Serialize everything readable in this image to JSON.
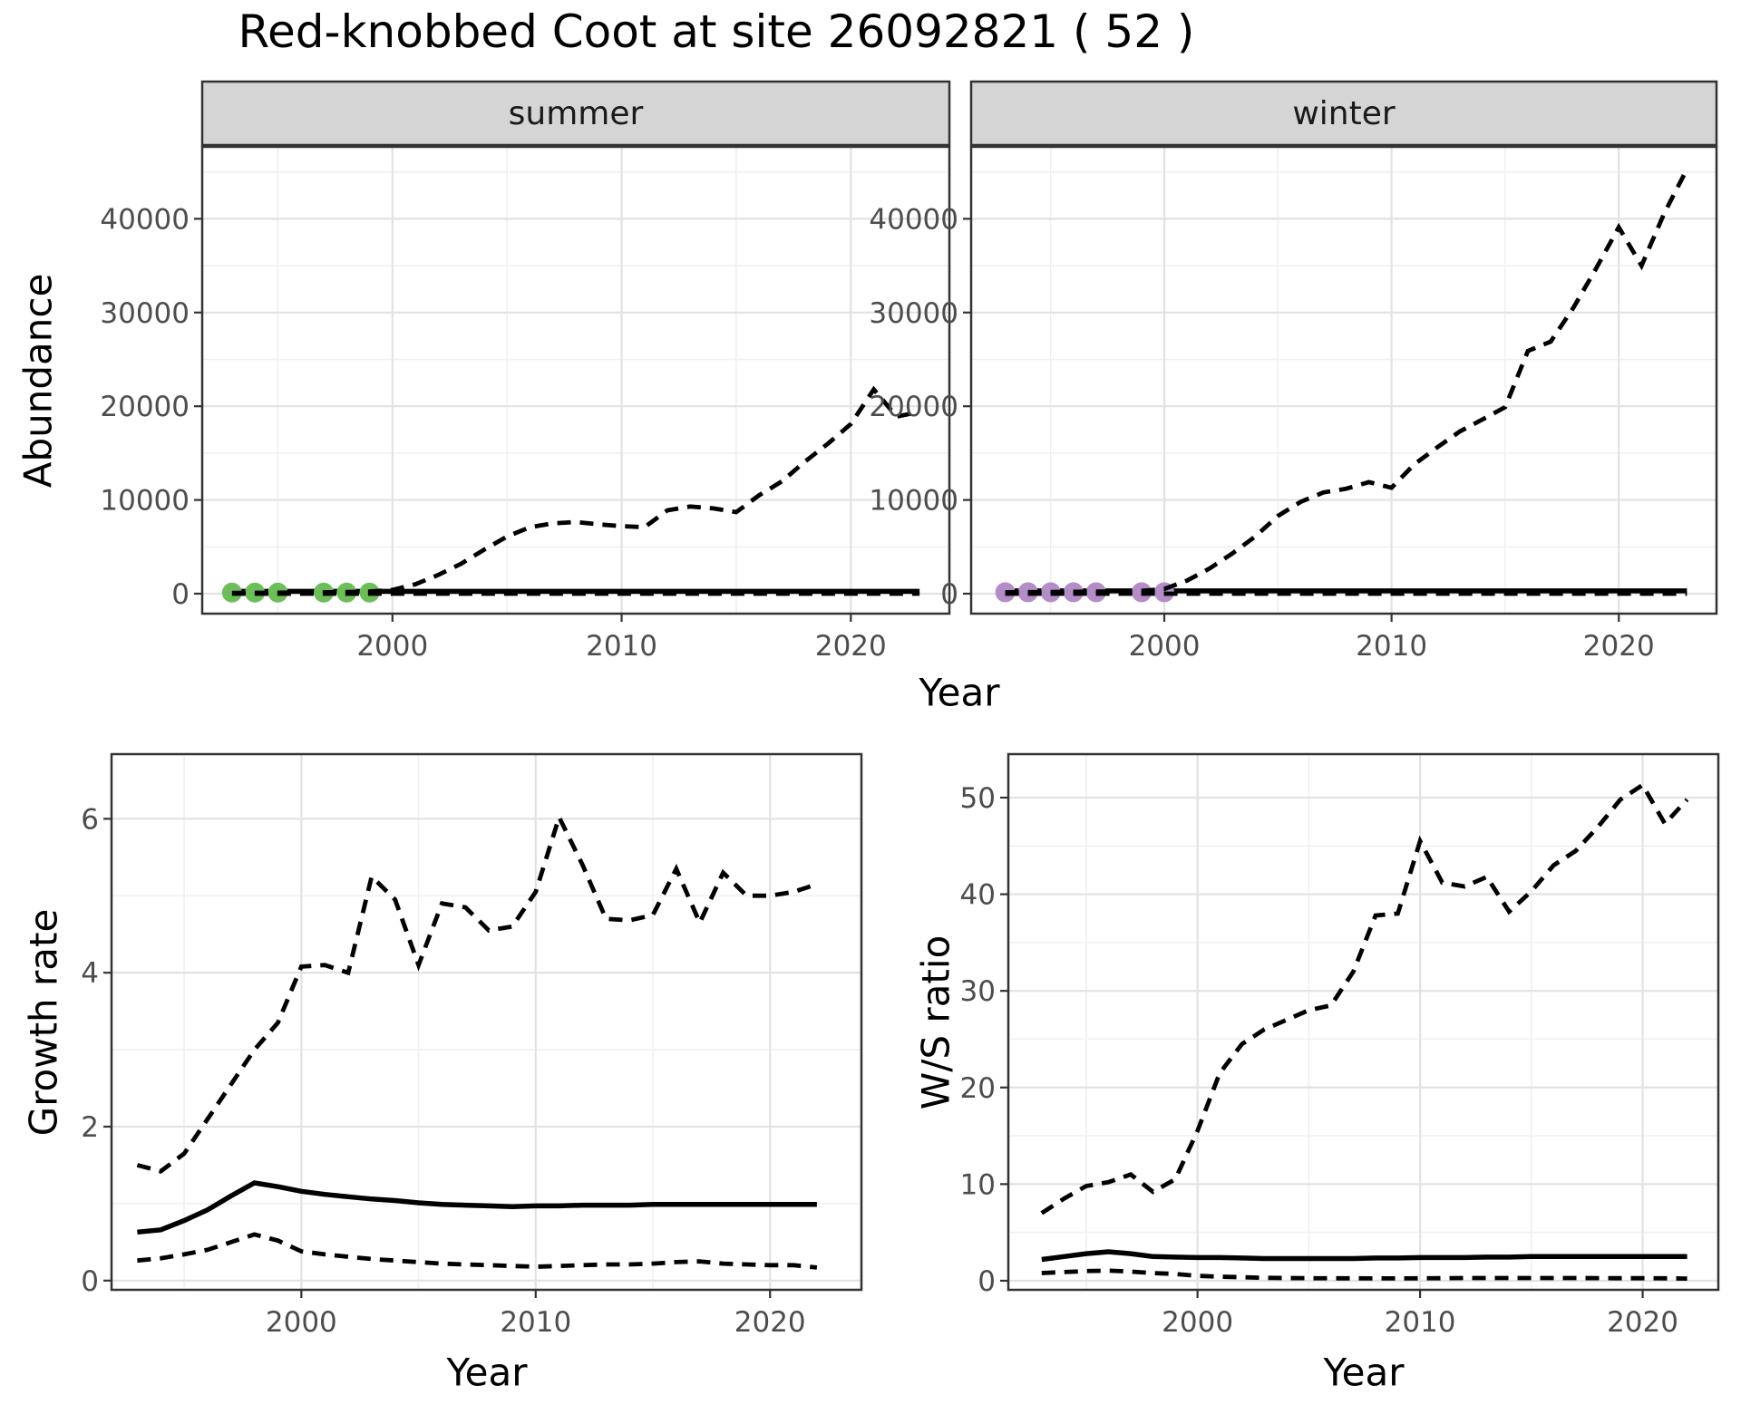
{
  "title": "Red-knobbed Coot at site 26092821 ( 52 )",
  "colors": {
    "summer_points": "#6CBE59",
    "winter_points": "#B48CC8",
    "line": "#000000",
    "strip_bg": "#D5D5D5",
    "panel_border": "#333333",
    "grid_major": "#E2E2E2",
    "grid_minor": "#F0F0F0",
    "tick_text": "#4D4D4D"
  },
  "chart_data": [
    {
      "id": "abundance-summer",
      "type": "line",
      "facet_label": "summer",
      "xlabel": "Year",
      "ylabel": "Abundance",
      "xlim": [
        1991.7,
        2024.3
      ],
      "ylim": [
        -2130,
        47680
      ],
      "x_ticks": [
        2000,
        2010,
        2020
      ],
      "y_ticks": [
        0,
        10000,
        20000,
        30000,
        40000
      ],
      "x_minor": [
        1995,
        2005,
        2015
      ],
      "y_minor": [
        5000,
        15000,
        25000,
        35000,
        45000
      ],
      "grid": true,
      "legend": "none",
      "years": [
        1993,
        1994,
        1995,
        1996,
        1997,
        1998,
        1999,
        2000,
        2001,
        2002,
        2003,
        2004,
        2005,
        2006,
        2007,
        2008,
        2009,
        2010,
        2011,
        2012,
        2013,
        2014,
        2015,
        2016,
        2017,
        2018,
        2019,
        2020,
        2021,
        2022,
        2023
      ],
      "series": [
        {
          "name": "upper_ci",
          "style": "dashed",
          "values": [
            80,
            90,
            100,
            120,
            140,
            170,
            220,
            400,
            1000,
            2000,
            3200,
            4700,
            6100,
            7100,
            7500,
            7650,
            7400,
            7200,
            7100,
            8900,
            9300,
            9100,
            8700,
            10500,
            12000,
            14100,
            16000,
            18100,
            21800,
            18900,
            19400
          ]
        },
        {
          "name": "median",
          "style": "solid",
          "values": [
            250,
            250,
            250,
            250,
            250,
            250,
            250,
            250,
            250,
            250,
            250,
            250,
            250,
            250,
            250,
            250,
            250,
            250,
            250,
            250,
            250,
            250,
            250,
            250,
            250,
            250,
            250,
            250,
            250,
            250,
            250
          ]
        },
        {
          "name": "lower_ci",
          "style": "dashed",
          "values": [
            0,
            0,
            0,
            0,
            0,
            0,
            0,
            0,
            0,
            0,
            0,
            0,
            0,
            0,
            0,
            0,
            0,
            0,
            0,
            0,
            0,
            0,
            0,
            0,
            0,
            0,
            0,
            0,
            0,
            0,
            0
          ]
        }
      ],
      "points": {
        "name": "observed-count",
        "color": "#6CBE59",
        "x": [
          1993,
          1994,
          1995,
          1997,
          1998,
          1999
        ],
        "y": [
          120,
          120,
          120,
          120,
          120,
          120
        ]
      }
    },
    {
      "id": "abundance-winter",
      "type": "line",
      "facet_label": "winter",
      "xlabel": "Year",
      "ylabel": "Abundance",
      "xlim": [
        1991.5,
        2024.3
      ],
      "ylim": [
        -2130,
        47680
      ],
      "x_ticks": [
        2000,
        2010,
        2020
      ],
      "y_ticks": [
        0,
        10000,
        20000,
        30000,
        40000
      ],
      "x_minor": [
        1995,
        2005,
        2015
      ],
      "y_minor": [
        5000,
        15000,
        25000,
        35000,
        45000
      ],
      "grid": true,
      "legend": "none",
      "years": [
        1993,
        1994,
        1995,
        1996,
        1997,
        1998,
        1999,
        2000,
        2001,
        2002,
        2003,
        2004,
        2005,
        2006,
        2007,
        2008,
        2009,
        2010,
        2011,
        2012,
        2013,
        2014,
        2015,
        2016,
        2017,
        2018,
        2019,
        2020,
        2021,
        2022,
        2023
      ],
      "series": [
        {
          "name": "upper_ci",
          "style": "dashed",
          "values": [
            150,
            160,
            180,
            200,
            220,
            250,
            300,
            500,
            1400,
            2700,
            4300,
            6100,
            8300,
            9800,
            10800,
            11200,
            11900,
            11300,
            13800,
            15600,
            17300,
            18600,
            19900,
            25900,
            26900,
            30500,
            34700,
            39100,
            35000,
            40600,
            45300
          ]
        },
        {
          "name": "median",
          "style": "solid",
          "values": [
            300,
            300,
            300,
            300,
            300,
            300,
            300,
            300,
            300,
            300,
            300,
            300,
            300,
            300,
            300,
            300,
            300,
            300,
            300,
            300,
            300,
            300,
            300,
            300,
            300,
            300,
            300,
            300,
            300,
            300,
            300
          ]
        },
        {
          "name": "lower_ci",
          "style": "dashed",
          "values": [
            0,
            0,
            0,
            0,
            0,
            0,
            0,
            0,
            0,
            0,
            0,
            0,
            0,
            0,
            0,
            0,
            0,
            0,
            0,
            0,
            0,
            0,
            0,
            0,
            0,
            0,
            0,
            0,
            0,
            0,
            0
          ]
        }
      ],
      "points": {
        "name": "observed-count",
        "color": "#B48CC8",
        "x": [
          1993,
          1994,
          1995,
          1996,
          1997,
          1999,
          2000
        ],
        "y": [
          150,
          150,
          150,
          150,
          150,
          150,
          150
        ]
      }
    },
    {
      "id": "growth-rate",
      "type": "line",
      "facet_label": null,
      "xlabel": "Year",
      "ylabel": "Growth rate",
      "xlim": [
        1991.9,
        2023.9
      ],
      "ylim": [
        -0.12,
        6.84
      ],
      "x_ticks": [
        2000,
        2010,
        2020
      ],
      "y_ticks": [
        0,
        2,
        4,
        6
      ],
      "x_minor": [
        1995,
        2005,
        2015
      ],
      "y_minor": [
        1,
        3,
        5
      ],
      "grid": true,
      "legend": "none",
      "years": [
        1993,
        1994,
        1995,
        1996,
        1997,
        1998,
        1999,
        2000,
        2001,
        2002,
        2003,
        2004,
        2005,
        2006,
        2007,
        2008,
        2009,
        2010,
        2011,
        2012,
        2013,
        2014,
        2015,
        2016,
        2017,
        2018,
        2019,
        2020,
        2021,
        2022
      ],
      "series": [
        {
          "name": "upper_ci",
          "style": "dashed",
          "values": [
            1.5,
            1.42,
            1.65,
            2.1,
            2.55,
            3.0,
            3.35,
            4.08,
            4.1,
            4.0,
            5.25,
            4.95,
            4.1,
            4.9,
            4.85,
            4.55,
            4.6,
            5.05,
            6.02,
            5.4,
            4.7,
            4.68,
            4.75,
            5.35,
            4.65,
            5.3,
            5.0,
            5.0,
            5.05,
            5.15
          ]
        },
        {
          "name": "median",
          "style": "solid",
          "values": [
            0.63,
            0.66,
            0.78,
            0.92,
            1.1,
            1.27,
            1.22,
            1.16,
            1.12,
            1.09,
            1.06,
            1.04,
            1.01,
            0.99,
            0.98,
            0.97,
            0.96,
            0.97,
            0.97,
            0.98,
            0.98,
            0.98,
            0.99,
            0.99,
            0.99,
            0.99,
            0.99,
            0.99,
            0.99,
            0.99
          ]
        },
        {
          "name": "lower_ci",
          "style": "dashed",
          "values": [
            0.26,
            0.29,
            0.34,
            0.4,
            0.5,
            0.6,
            0.52,
            0.38,
            0.34,
            0.31,
            0.28,
            0.26,
            0.24,
            0.22,
            0.21,
            0.2,
            0.19,
            0.18,
            0.19,
            0.2,
            0.21,
            0.21,
            0.22,
            0.24,
            0.25,
            0.22,
            0.21,
            0.2,
            0.2,
            0.17
          ]
        }
      ],
      "points": null
    },
    {
      "id": "ws-ratio",
      "type": "line",
      "facet_label": null,
      "xlabel": "Year",
      "ylabel": "W/S ratio",
      "xlim": [
        1991.5,
        2023.4
      ],
      "ylim": [
        -0.94,
        54.5
      ],
      "x_ticks": [
        2000,
        2010,
        2020
      ],
      "y_ticks": [
        0,
        10,
        20,
        30,
        40,
        50
      ],
      "x_minor": [
        1995,
        2005,
        2015
      ],
      "y_minor": [
        5,
        15,
        25,
        35,
        45
      ],
      "grid": true,
      "legend": "none",
      "years": [
        1993,
        1994,
        1995,
        1996,
        1997,
        1998,
        1999,
        2000,
        2001,
        2002,
        2003,
        2004,
        2005,
        2006,
        2007,
        2008,
        2009,
        2010,
        2011,
        2012,
        2013,
        2014,
        2015,
        2016,
        2017,
        2018,
        2019,
        2020,
        2021,
        2022
      ],
      "series": [
        {
          "name": "upper_ci",
          "style": "dashed",
          "values": [
            7.0,
            8.5,
            9.8,
            10.2,
            11.0,
            9.2,
            10.5,
            15.5,
            21.5,
            24.5,
            26.0,
            27.0,
            28.0,
            28.5,
            32.0,
            37.8,
            38.0,
            45.5,
            41.2,
            40.8,
            41.8,
            38.2,
            40.3,
            43.0,
            44.5,
            47.0,
            49.8,
            51.3,
            47.3,
            49.8
          ]
        },
        {
          "name": "median",
          "style": "solid",
          "values": [
            2.2,
            2.5,
            2.8,
            3.0,
            2.8,
            2.5,
            2.45,
            2.4,
            2.4,
            2.35,
            2.3,
            2.3,
            2.3,
            2.3,
            2.3,
            2.35,
            2.35,
            2.4,
            2.4,
            2.4,
            2.45,
            2.45,
            2.5,
            2.5,
            2.5,
            2.5,
            2.5,
            2.5,
            2.5,
            2.5
          ]
        },
        {
          "name": "lower_ci",
          "style": "dashed",
          "values": [
            0.8,
            0.9,
            1.0,
            1.05,
            0.95,
            0.8,
            0.7,
            0.5,
            0.42,
            0.36,
            0.3,
            0.28,
            0.26,
            0.25,
            0.25,
            0.24,
            0.24,
            0.25,
            0.26,
            0.28,
            0.28,
            0.28,
            0.28,
            0.28,
            0.28,
            0.27,
            0.26,
            0.26,
            0.25,
            0.22
          ]
        }
      ],
      "points": null
    }
  ]
}
